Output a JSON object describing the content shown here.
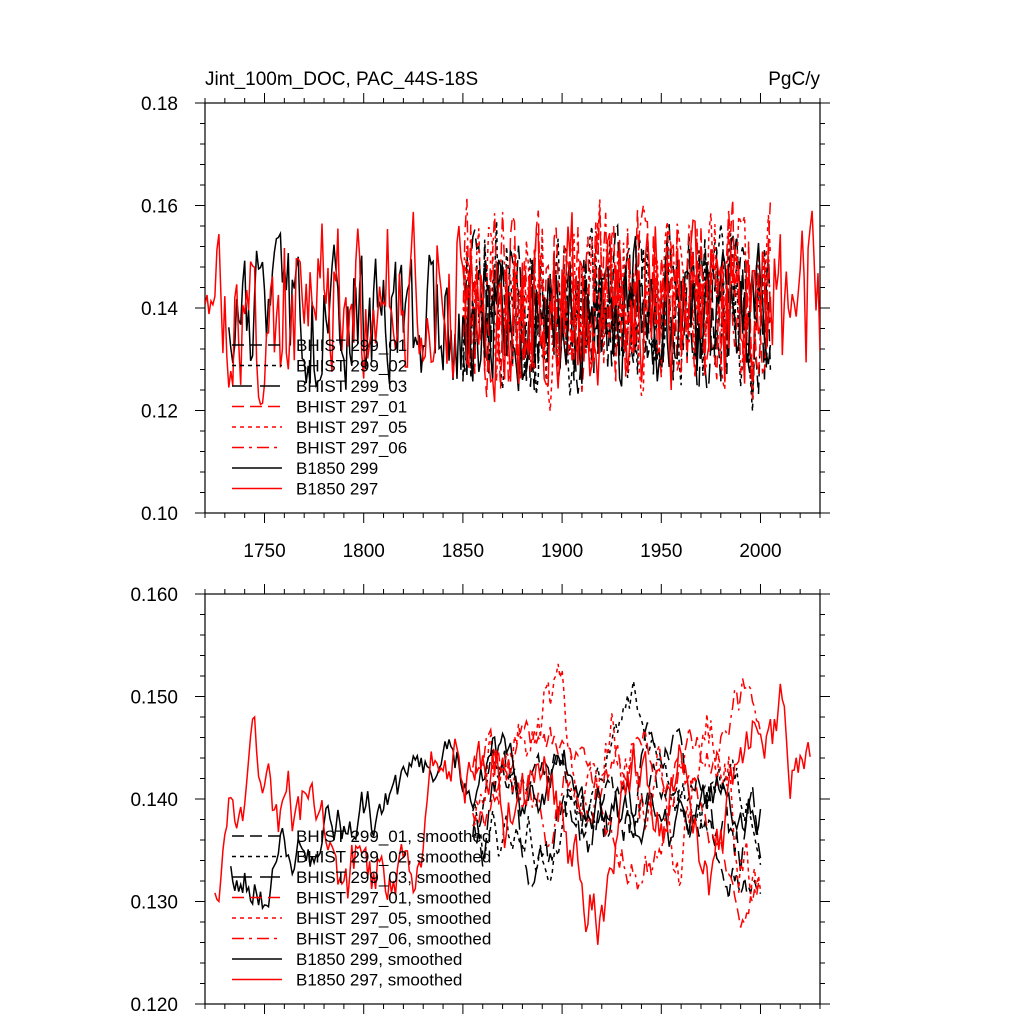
{
  "panels": [
    {
      "title_left": "Jint_100m_DOC, PAC_44S-18S",
      "title_right": "PgC/y",
      "chart_data": {
        "type": "line",
        "xlim": [
          1720,
          2030
        ],
        "ylim": [
          0.1,
          0.18
        ],
        "xticks": [
          1750,
          1800,
          1850,
          1900,
          1950,
          2000
        ],
        "xtick_labels": [
          "1750",
          "1800",
          "1850",
          "1900",
          "1950",
          "2000"
        ],
        "yticks": [
          0.1,
          0.12,
          0.14,
          0.16,
          0.18
        ],
        "ytick_labels": [
          "0.10",
          "0.12",
          "0.14",
          "0.16",
          "0.18"
        ],
        "legend_position": "lower-left",
        "series": [
          {
            "name": "BHIST 299_01",
            "color": "#000000",
            "dash": "12,6",
            "seed": 11,
            "x_start": 1850,
            "x_end": 2005,
            "mean": 0.139,
            "amp": 0.013,
            "smooth": false
          },
          {
            "name": "BHIST 299_02",
            "color": "#000000",
            "dash": "4,4",
            "seed": 12,
            "x_start": 1850,
            "x_end": 2005,
            "mean": 0.14,
            "amp": 0.014,
            "smooth": false
          },
          {
            "name": "BHIST 299_03",
            "color": "#000000",
            "dash": "20,8",
            "seed": 13,
            "x_start": 1850,
            "x_end": 2005,
            "mean": 0.139,
            "amp": 0.013,
            "smooth": false
          },
          {
            "name": "BHIST 297_01",
            "color": "#ff0000",
            "dash": "12,6",
            "seed": 14,
            "x_start": 1850,
            "x_end": 2005,
            "mean": 0.141,
            "amp": 0.015,
            "smooth": false
          },
          {
            "name": "BHIST 297_05",
            "color": "#ff0000",
            "dash": "4,4",
            "seed": 15,
            "x_start": 1850,
            "x_end": 2005,
            "mean": 0.142,
            "amp": 0.015,
            "smooth": false
          },
          {
            "name": "BHIST 297_06",
            "color": "#ff0000",
            "dash": "12,5,3,5",
            "seed": 16,
            "x_start": 1850,
            "x_end": 2005,
            "mean": 0.141,
            "amp": 0.015,
            "smooth": false
          },
          {
            "name": "B1850 299",
            "color": "#000000",
            "dash": "",
            "seed": 17,
            "x_start": 1732,
            "x_end": 2005,
            "mean": 0.138,
            "amp": 0.012,
            "smooth": false
          },
          {
            "name": "B1850 297",
            "color": "#ff0000",
            "dash": "",
            "seed": 18,
            "x_start": 1720,
            "x_end": 2030,
            "mean": 0.14,
            "amp": 0.014,
            "smooth": false
          }
        ]
      }
    },
    {
      "title_left": "",
      "title_right": "",
      "chart_data": {
        "type": "line",
        "xlim": [
          1720,
          2030
        ],
        "ylim": [
          0.12,
          0.16
        ],
        "xticks": [
          1750,
          1800,
          1850,
          1900,
          1950,
          2000
        ],
        "xtick_labels": [],
        "yticks": [
          0.12,
          0.13,
          0.14,
          0.15,
          0.16
        ],
        "ytick_labels": [
          "0.120",
          "0.130",
          "0.140",
          "0.150",
          "0.160"
        ],
        "legend_position": "lower-left",
        "series": [
          {
            "name": "BHIST 299_01, smoothed",
            "color": "#000000",
            "dash": "12,6",
            "seed": 21,
            "x_start": 1855,
            "x_end": 2000,
            "mean": 0.139,
            "amp": 0.006,
            "smooth": true
          },
          {
            "name": "BHIST 299_02, smoothed",
            "color": "#000000",
            "dash": "4,4",
            "seed": 22,
            "x_start": 1855,
            "x_end": 2000,
            "mean": 0.14,
            "amp": 0.007,
            "smooth": true
          },
          {
            "name": "BHIST 299_03, smoothed",
            "color": "#000000",
            "dash": "20,8",
            "seed": 23,
            "x_start": 1855,
            "x_end": 2000,
            "mean": 0.139,
            "amp": 0.006,
            "smooth": true
          },
          {
            "name": "BHIST 297_01, smoothed",
            "color": "#ff0000",
            "dash": "12,6",
            "seed": 24,
            "x_start": 1855,
            "x_end": 2000,
            "mean": 0.141,
            "amp": 0.008,
            "smooth": true
          },
          {
            "name": "BHIST 297_05, smoothed",
            "color": "#ff0000",
            "dash": "4,4",
            "seed": 25,
            "x_start": 1855,
            "x_end": 2000,
            "mean": 0.142,
            "amp": 0.008,
            "smooth": true
          },
          {
            "name": "BHIST 297_06, smoothed",
            "color": "#ff0000",
            "dash": "12,5,3,5",
            "seed": 26,
            "x_start": 1855,
            "x_end": 2000,
            "mean": 0.141,
            "amp": 0.008,
            "smooth": true
          },
          {
            "name": "B1850 299, smoothed",
            "color": "#000000",
            "dash": "",
            "seed": 27,
            "x_start": 1733,
            "x_end": 2000,
            "mean": 0.139,
            "amp": 0.006,
            "smooth": true
          },
          {
            "name": "B1850 297, smoothed",
            "color": "#ff0000",
            "dash": "",
            "seed": 28,
            "x_start": 1725,
            "x_end": 2025,
            "mean": 0.139,
            "amp": 0.008,
            "smooth": true
          }
        ]
      }
    }
  ]
}
